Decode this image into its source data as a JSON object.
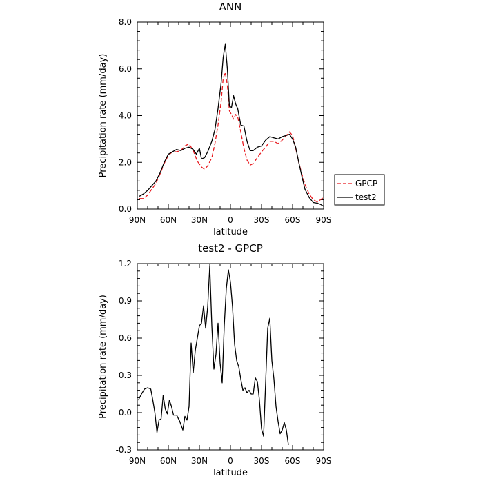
{
  "chart_data": [
    {
      "type": "line",
      "title": "ANN",
      "xlabel": "latitude",
      "ylabel": "Precipitation rate (mm/day)",
      "xlim": [
        -90,
        90
      ],
      "ylim": [
        0,
        8
      ],
      "x_direction": "north-to-south",
      "x_ticks": [
        {
          "value": -90,
          "label": "90N"
        },
        {
          "value": -60,
          "label": "60N"
        },
        {
          "value": -30,
          "label": "30N"
        },
        {
          "value": 0,
          "label": "0"
        },
        {
          "value": 30,
          "label": "30S"
        },
        {
          "value": 60,
          "label": "60S"
        },
        {
          "value": 90,
          "label": "90S"
        }
      ],
      "y_ticks": [
        {
          "value": 0,
          "label": "0.0"
        },
        {
          "value": 2,
          "label": "2.0"
        },
        {
          "value": 4,
          "label": "4.0"
        },
        {
          "value": 6,
          "label": "6.0"
        },
        {
          "value": 8,
          "label": "8.0"
        }
      ],
      "grid": false,
      "legend": {
        "placement": "right-outside"
      },
      "series": [
        {
          "name": "GPCP",
          "color": "#e8191e",
          "dashed": true,
          "points": [
            [
              -88,
              0.45
            ],
            [
              -84,
              0.45
            ],
            [
              -80,
              0.6
            ],
            [
              -76,
              0.85
            ],
            [
              -72,
              1.1
            ],
            [
              -68,
              1.5
            ],
            [
              -64,
              1.95
            ],
            [
              -60,
              2.3
            ],
            [
              -56,
              2.45
            ],
            [
              -52,
              2.45
            ],
            [
              -48,
              2.5
            ],
            [
              -44,
              2.7
            ],
            [
              -40,
              2.8
            ],
            [
              -36,
              2.5
            ],
            [
              -32,
              2.05
            ],
            [
              -28,
              1.8
            ],
            [
              -25,
              1.7
            ],
            [
              -22,
              1.85
            ],
            [
              -18,
              2.2
            ],
            [
              -15,
              2.8
            ],
            [
              -12,
              3.6
            ],
            [
              -9,
              4.6
            ],
            [
              -7,
              5.6
            ],
            [
              -5,
              5.85
            ],
            [
              -3,
              5.3
            ],
            [
              -1,
              4.2
            ],
            [
              1,
              4.05
            ],
            [
              3,
              3.85
            ],
            [
              5,
              4.05
            ],
            [
              7,
              3.95
            ],
            [
              10,
              3.3
            ],
            [
              13,
              2.6
            ],
            [
              16,
              2.1
            ],
            [
              19,
              1.88
            ],
            [
              22,
              1.95
            ],
            [
              26,
              2.2
            ],
            [
              30,
              2.45
            ],
            [
              34,
              2.65
            ],
            [
              38,
              2.9
            ],
            [
              42,
              2.9
            ],
            [
              46,
              2.8
            ],
            [
              50,
              2.95
            ],
            [
              54,
              3.15
            ],
            [
              57,
              3.3
            ],
            [
              60,
              3.15
            ],
            [
              63,
              2.6
            ],
            [
              66,
              2.0
            ],
            [
              69,
              1.5
            ],
            [
              72,
              1.05
            ],
            [
              76,
              0.65
            ],
            [
              80,
              0.4
            ],
            [
              84,
              0.3
            ],
            [
              87,
              0.4
            ],
            [
              90,
              0.5
            ]
          ]
        },
        {
          "name": "test2",
          "color": "#000000",
          "dashed": false,
          "points": [
            [
              -88,
              0.55
            ],
            [
              -84,
              0.65
            ],
            [
              -80,
              0.8
            ],
            [
              -76,
              1.0
            ],
            [
              -72,
              1.2
            ],
            [
              -68,
              1.55
            ],
            [
              -64,
              2.0
            ],
            [
              -60,
              2.35
            ],
            [
              -56,
              2.45
            ],
            [
              -52,
              2.55
            ],
            [
              -48,
              2.5
            ],
            [
              -44,
              2.6
            ],
            [
              -40,
              2.65
            ],
            [
              -36,
              2.55
            ],
            [
              -33,
              2.35
            ],
            [
              -30,
              2.6
            ],
            [
              -28,
              2.15
            ],
            [
              -25,
              2.2
            ],
            [
              -22,
              2.45
            ],
            [
              -18,
              2.9
            ],
            [
              -15,
              3.4
            ],
            [
              -12,
              4.3
            ],
            [
              -9,
              5.4
            ],
            [
              -7,
              6.5
            ],
            [
              -5,
              7.05
            ],
            [
              -3,
              6.0
            ],
            [
              -1,
              4.4
            ],
            [
              1,
              4.35
            ],
            [
              3,
              4.85
            ],
            [
              5,
              4.5
            ],
            [
              7,
              4.3
            ],
            [
              10,
              3.6
            ],
            [
              13,
              3.55
            ],
            [
              16,
              2.9
            ],
            [
              19,
              2.5
            ],
            [
              22,
              2.5
            ],
            [
              26,
              2.65
            ],
            [
              30,
              2.7
            ],
            [
              34,
              2.95
            ],
            [
              38,
              3.1
            ],
            [
              42,
              3.05
            ],
            [
              46,
              3.0
            ],
            [
              50,
              3.1
            ],
            [
              54,
              3.15
            ],
            [
              57,
              3.2
            ],
            [
              60,
              3.0
            ],
            [
              63,
              2.65
            ],
            [
              66,
              2.0
            ],
            [
              69,
              1.4
            ],
            [
              72,
              0.85
            ],
            [
              76,
              0.5
            ],
            [
              80,
              0.28
            ],
            [
              84,
              0.25
            ],
            [
              87,
              0.2
            ],
            [
              90,
              0.12
            ]
          ]
        }
      ]
    },
    {
      "type": "line",
      "title": "test2 - GPCP",
      "xlabel": "latitude",
      "ylabel": "Precipitation rate (mm/day)",
      "xlim": [
        -90,
        90
      ],
      "ylim": [
        -0.3,
        1.2
      ],
      "x_direction": "north-to-south",
      "x_ticks": [
        {
          "value": -90,
          "label": "90N"
        },
        {
          "value": -60,
          "label": "60N"
        },
        {
          "value": -30,
          "label": "30N"
        },
        {
          "value": 0,
          "label": "0"
        },
        {
          "value": 30,
          "label": "30S"
        },
        {
          "value": 60,
          "label": "60S"
        },
        {
          "value": 90,
          "label": "90S"
        }
      ],
      "y_ticks": [
        {
          "value": -0.3,
          "label": "-0.3"
        },
        {
          "value": 0.0,
          "label": "0.0"
        },
        {
          "value": 0.3,
          "label": "0.3"
        },
        {
          "value": 0.6,
          "label": "0.6"
        },
        {
          "value": 0.9,
          "label": "0.9"
        },
        {
          "value": 1.2,
          "label": "1.2"
        }
      ],
      "grid": false,
      "series": [
        {
          "name": "",
          "color": "#000000",
          "dashed": false,
          "points": [
            [
              -89,
              0.1
            ],
            [
              -86,
              0.15
            ],
            [
              -83,
              0.19
            ],
            [
              -80,
              0.2
            ],
            [
              -77,
              0.19
            ],
            [
              -75,
              0.1
            ],
            [
              -73,
              0.0
            ],
            [
              -71,
              -0.16
            ],
            [
              -69,
              -0.06
            ],
            [
              -67,
              -0.05
            ],
            [
              -65,
              0.14
            ],
            [
              -63,
              0.03
            ],
            [
              -61,
              -0.01
            ],
            [
              -59,
              0.1
            ],
            [
              -57,
              0.05
            ],
            [
              -55,
              -0.02
            ],
            [
              -52,
              -0.02
            ],
            [
              -49,
              -0.07
            ],
            [
              -46,
              -0.14
            ],
            [
              -44,
              -0.03
            ],
            [
              -42,
              -0.06
            ],
            [
              -40,
              0.05
            ],
            [
              -38,
              0.56
            ],
            [
              -36,
              0.32
            ],
            [
              -34,
              0.5
            ],
            [
              -32,
              0.6
            ],
            [
              -30,
              0.7
            ],
            [
              -28,
              0.72
            ],
            [
              -26,
              0.86
            ],
            [
              -24,
              0.68
            ],
            [
              -22,
              0.85
            ],
            [
              -20,
              1.18
            ],
            [
              -18,
              0.7
            ],
            [
              -16,
              0.35
            ],
            [
              -14,
              0.47
            ],
            [
              -12,
              0.72
            ],
            [
              -10,
              0.4
            ],
            [
              -8,
              0.24
            ],
            [
              -6,
              0.7
            ],
            [
              -4,
              1.0
            ],
            [
              -2,
              1.15
            ],
            [
              0,
              1.05
            ],
            [
              2,
              0.85
            ],
            [
              4,
              0.55
            ],
            [
              6,
              0.42
            ],
            [
              8,
              0.37
            ],
            [
              10,
              0.27
            ],
            [
              12,
              0.18
            ],
            [
              14,
              0.2
            ],
            [
              16,
              0.16
            ],
            [
              18,
              0.18
            ],
            [
              20,
              0.15
            ],
            [
              22,
              0.15
            ],
            [
              24,
              0.28
            ],
            [
              26,
              0.25
            ],
            [
              28,
              0.1
            ],
            [
              30,
              -0.13
            ],
            [
              32,
              -0.19
            ],
            [
              36,
              0.68
            ],
            [
              38,
              0.76
            ],
            [
              40,
              0.42
            ],
            [
              42,
              0.27
            ],
            [
              44,
              0.05
            ],
            [
              46,
              -0.07
            ],
            [
              48,
              -0.17
            ],
            [
              50,
              -0.14
            ],
            [
              52,
              -0.08
            ],
            [
              54,
              -0.14
            ],
            [
              56,
              -0.26
            ]
          ]
        }
      ]
    }
  ]
}
